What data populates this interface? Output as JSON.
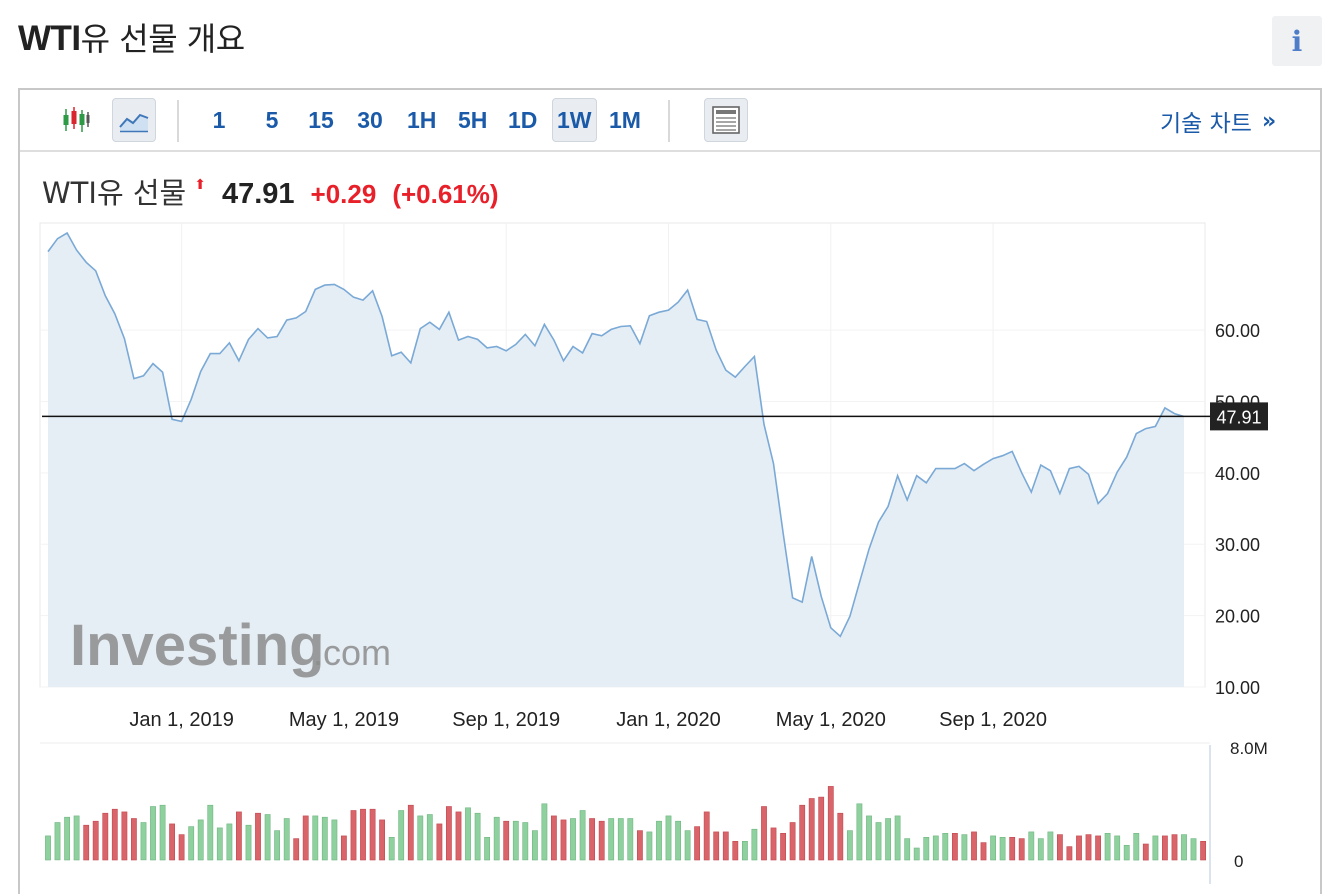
{
  "page": {
    "title_bold": "WTI",
    "title_rest": "유 선물 개요",
    "info_label": "i"
  },
  "toolbar": {
    "intervals": [
      "1",
      "5",
      "15",
      "30",
      "1H",
      "5H",
      "1D",
      "1W",
      "1M"
    ],
    "active_interval": "1W",
    "tech_chart_label": "기술 차트",
    "tech_chart_arrow": "»"
  },
  "quote": {
    "name": "WTI유 선물",
    "price": "47.91",
    "change": "+0.29",
    "change_pct": "(+0.61%)",
    "direction_color": "#e8202a"
  },
  "watermark": {
    "brand": "Investing",
    "suffix": ".com"
  },
  "chart_data": {
    "type": "area",
    "series_name": "WTI유 선물",
    "line_color": "#7aa9d6",
    "fill_color": "#e6eef5",
    "current_price": 47.91,
    "current_price_label": "47.91",
    "ylim": [
      10,
      75
    ],
    "ytick_values": [
      10,
      20,
      30,
      40,
      50,
      60
    ],
    "ytick_labels": [
      "10.00",
      "20.00",
      "30.00",
      "40.00",
      "50.00",
      "60.00"
    ],
    "xtick_labels": [
      "Jan 1, 2019",
      "May 1, 2019",
      "Sep 1, 2019",
      "Jan 1, 2020",
      "May 1, 2020",
      "Sep 1, 2020"
    ],
    "xtick_index": [
      14,
      31,
      48,
      65,
      82,
      99
    ],
    "values": [
      71,
      72.8,
      73.6,
      71.2,
      69.5,
      68.3,
      64.8,
      62.3,
      58.8,
      53.2,
      53.6,
      55.3,
      54.1,
      47.5,
      47.2,
      50.3,
      54.2,
      56.7,
      56.7,
      58.2,
      55.7,
      58.7,
      60.2,
      58.9,
      59.1,
      61.4,
      61.7,
      62.6,
      65.7,
      66.3,
      66.4,
      65.7,
      64.6,
      64.2,
      65.5,
      61.9,
      56.4,
      56.9,
      55.4,
      60.2,
      61.1,
      60.1,
      62.5,
      58.6,
      59.1,
      58.7,
      57.5,
      57.7,
      57.1,
      58.0,
      59.4,
      57.8,
      60.8,
      58.6,
      55.7,
      57.7,
      56.8,
      59.5,
      59.2,
      60.1,
      60.5,
      60.6,
      58.1,
      62.0,
      62.5,
      62.8,
      63.9,
      65.6,
      61.5,
      61.2,
      57.2,
      54.4,
      53.4,
      54.9,
      56.3,
      46.8,
      41.3,
      31.6,
      22.5,
      21.9,
      28.3,
      22.7,
      18.3,
      17.1,
      19.9,
      24.6,
      29.3,
      33.1,
      35.3,
      39.6,
      36.2,
      39.6,
      38.6,
      40.6,
      40.6,
      40.6,
      41.3,
      40.3,
      41.2,
      42.0,
      42.4,
      43.0,
      40.0,
      37.3,
      41.1,
      40.3,
      37.1,
      40.6,
      40.9,
      39.8,
      35.7,
      37.1,
      40.1,
      42.2,
      45.5,
      46.2,
      46.5,
      49.1,
      48.3,
      47.9
    ],
    "volume": {
      "ylabel_top": "8.0M",
      "ylabel_bottom": "0",
      "ymax": 8.0,
      "up_color": "#8fd19e",
      "down_color": "#d9646a",
      "bars": [
        1.8,
        2.8,
        3.2,
        3.3,
        2.6,
        2.9,
        3.5,
        3.8,
        3.6,
        3.1,
        2.8,
        4.0,
        4.1,
        2.7,
        1.9,
        2.5,
        3.0,
        4.1,
        2.4,
        2.7,
        3.6,
        2.6,
        3.5,
        3.4,
        2.2,
        3.1,
        1.6,
        3.3,
        3.3,
        3.2,
        3.0,
        1.8,
        3.7,
        3.8,
        3.8,
        3.0,
        1.7,
        3.7,
        4.1,
        3.3,
        3.4,
        2.7,
        4.0,
        3.6,
        3.9,
        3.5,
        1.7,
        3.2,
        2.9,
        2.9,
        2.8,
        2.2,
        4.2,
        3.3,
        3.0,
        3.1,
        3.7,
        3.1,
        2.9,
        3.1,
        3.1,
        3.1,
        2.2,
        2.1,
        2.9,
        3.3,
        2.9,
        2.2,
        2.5,
        3.6,
        2.1,
        2.1,
        1.4,
        1.4,
        2.3,
        4.0,
        2.4,
        2.0,
        2.8,
        4.1,
        4.6,
        4.7,
        5.5,
        3.5,
        2.2,
        4.2,
        3.3,
        2.8,
        3.1,
        3.3,
        1.6,
        0.9,
        1.7,
        1.8,
        2.0,
        2.0,
        1.9,
        2.1,
        1.3,
        1.8,
        1.7,
        1.7,
        1.6,
        2.1,
        1.6,
        2.1,
        1.9,
        1.0,
        1.8,
        1.9,
        1.8,
        2.0,
        1.8,
        1.1,
        2.0,
        1.2,
        1.8,
        1.8,
        1.9,
        1.9,
        1.6,
        1.4
      ],
      "dirs": [
        "u",
        "u",
        "u",
        "u",
        "d",
        "d",
        "d",
        "d",
        "d",
        "d",
        "u",
        "u",
        "u",
        "d",
        "d",
        "u",
        "u",
        "u",
        "u",
        "u",
        "d",
        "u",
        "d",
        "u",
        "u",
        "u",
        "d",
        "d",
        "u",
        "u",
        "u",
        "d",
        "d",
        "d",
        "d",
        "d",
        "u",
        "u",
        "d",
        "u",
        "u",
        "d",
        "d",
        "d",
        "u",
        "u",
        "u",
        "u",
        "d",
        "u",
        "u",
        "u",
        "u",
        "d",
        "d",
        "u",
        "u",
        "d",
        "d",
        "u",
        "u",
        "u",
        "d",
        "u",
        "u",
        "u",
        "u",
        "u",
        "d",
        "d",
        "d",
        "d",
        "d",
        "u",
        "u",
        "d",
        "d",
        "d",
        "d",
        "d",
        "d",
        "d",
        "d",
        "d",
        "u",
        "u",
        "u",
        "u",
        "u",
        "u",
        "u",
        "u",
        "u",
        "u",
        "u",
        "d",
        "u",
        "d",
        "d",
        "u",
        "u",
        "d",
        "d",
        "u",
        "u",
        "u",
        "d",
        "d",
        "d",
        "d",
        "d",
        "u",
        "u",
        "u",
        "u",
        "d",
        "u",
        "d",
        "d",
        "u",
        "u",
        "d"
      ]
    }
  }
}
